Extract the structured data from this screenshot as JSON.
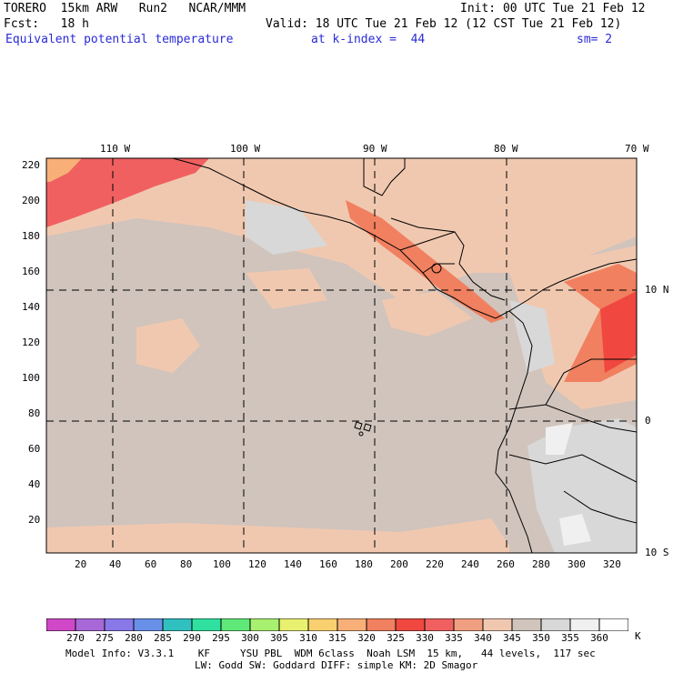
{
  "header": {
    "model": "TORERO  15km ARW   Run2   NCAR/MMM",
    "init": "Init: 00 UTC Tue 21 Feb 12",
    "fcst": "Fcst:   18 h",
    "valid": "Valid: 18 UTC Tue 21 Feb 12 (12 CST Tue 21 Feb 12)",
    "field": "Equivalent potential temperature",
    "level": "at k-index =  44",
    "smooth": "sm= 2"
  },
  "map": {
    "lon_labels": [
      "110 W",
      "100 W",
      "90 W",
      "80 W",
      "70 W"
    ],
    "lat_labels": [
      "10 N",
      "0",
      "10 S"
    ],
    "y_ticks": [
      "220",
      "200",
      "180",
      "160",
      "140",
      "120",
      "100",
      "80",
      "60",
      "40",
      "20"
    ],
    "x_ticks": [
      "20",
      "40",
      "60",
      "80",
      "100",
      "120",
      "140",
      "160",
      "180",
      "200",
      "220",
      "240",
      "260",
      "280",
      "300",
      "320"
    ]
  },
  "colorbar": {
    "labels": [
      "270",
      "275",
      "280",
      "285",
      "290",
      "295",
      "300",
      "305",
      "310",
      "315",
      "320",
      "325",
      "330",
      "335",
      "340",
      "345",
      "350",
      "355",
      "360"
    ],
    "unit": "K",
    "colors": [
      "#d048c8",
      "#a868d8",
      "#8878e8",
      "#6890e8",
      "#30c0c0",
      "#30e0a0",
      "#60e878",
      "#a8f070",
      "#e8f070",
      "#f8d070",
      "#f8b078",
      "#f08060",
      "#f04840",
      "#f06060",
      "#f0a080",
      "#f0c8b0",
      "#d0c4bc",
      "#d8d8d8",
      "#f0f0f0",
      "#ffffff"
    ]
  },
  "footer": {
    "line1": "Model Info: V3.3.1    KF     YSU PBL  WDM 6class  Noah LSM  15 km,   44 levels,  117 sec",
    "line2": "LW: Godd SW: Goddard DIFF: simple KM: 2D Smagor"
  }
}
